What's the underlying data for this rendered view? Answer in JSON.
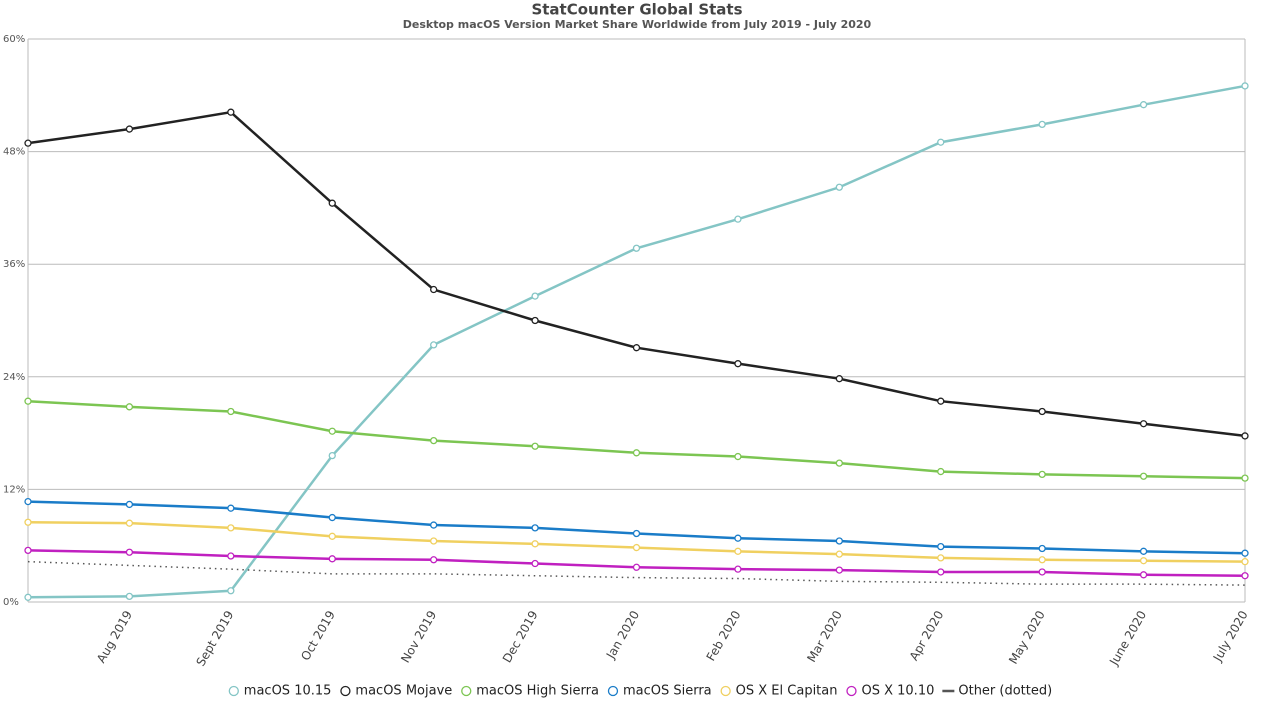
{
  "chart_data": {
    "type": "line",
    "title": "StatCounter Global Stats",
    "subtitle": "Desktop macOS Version Market Share Worldwide from July 2019 - July 2020",
    "categories": [
      null,
      "Aug 2019",
      "Sept 2019",
      "Oct 2019",
      "Nov 2019",
      "Dec 2019",
      "Jan 2020",
      "Feb 2020",
      "Mar 2020",
      "Apr 2020",
      "May 2020",
      "June 2020",
      "July 2020"
    ],
    "ylim": [
      0,
      60
    ],
    "yticks": [
      {
        "value": 0,
        "label": "0%"
      },
      {
        "value": 12,
        "label": "12%"
      },
      {
        "value": 24,
        "label": "24%"
      },
      {
        "value": 36,
        "label": "36%"
      },
      {
        "value": 48,
        "label": "48%"
      },
      {
        "value": 60,
        "label": "60%"
      }
    ],
    "grid": true,
    "legend": "bottom",
    "series": [
      {
        "name": "macOS 10.15",
        "color": "#84c5c5",
        "values": [
          0.5,
          0.6,
          1.2,
          15.6,
          27.4,
          32.6,
          37.7,
          40.8,
          44.2,
          49.0,
          50.9,
          53.0,
          55.0
        ]
      },
      {
        "name": "macOS Mojave",
        "color": "#222222",
        "values": [
          48.9,
          50.4,
          52.2,
          42.5,
          33.3,
          30.0,
          27.1,
          25.4,
          23.8,
          21.4,
          20.3,
          19.0,
          17.7
        ]
      },
      {
        "name": "macOS High Sierra",
        "color": "#7cc552",
        "values": [
          21.4,
          20.8,
          20.3,
          18.2,
          17.2,
          16.6,
          15.9,
          15.5,
          14.8,
          13.9,
          13.6,
          13.4,
          13.2
        ]
      },
      {
        "name": "macOS Sierra",
        "color": "#1a7cc8",
        "values": [
          10.7,
          10.4,
          10.0,
          9.0,
          8.2,
          7.9,
          7.3,
          6.8,
          6.5,
          5.9,
          5.7,
          5.4,
          5.2
        ]
      },
      {
        "name": "OS X El Capitan",
        "color": "#f0d060",
        "values": [
          8.5,
          8.4,
          7.9,
          7.0,
          6.5,
          6.2,
          5.8,
          5.4,
          5.1,
          4.7,
          4.5,
          4.4,
          4.3
        ]
      },
      {
        "name": "OS X 10.10",
        "color": "#c020c0",
        "values": [
          5.5,
          5.3,
          4.9,
          4.6,
          4.5,
          4.1,
          3.7,
          3.5,
          3.4,
          3.2,
          3.2,
          2.9,
          2.8
        ]
      },
      {
        "name": "Other (dotted)",
        "color": "#555555",
        "style": "dotted",
        "values": [
          4.3,
          3.9,
          3.5,
          3.0,
          3.0,
          2.8,
          2.6,
          2.5,
          2.2,
          2.1,
          1.9,
          1.9,
          1.8
        ]
      }
    ]
  }
}
